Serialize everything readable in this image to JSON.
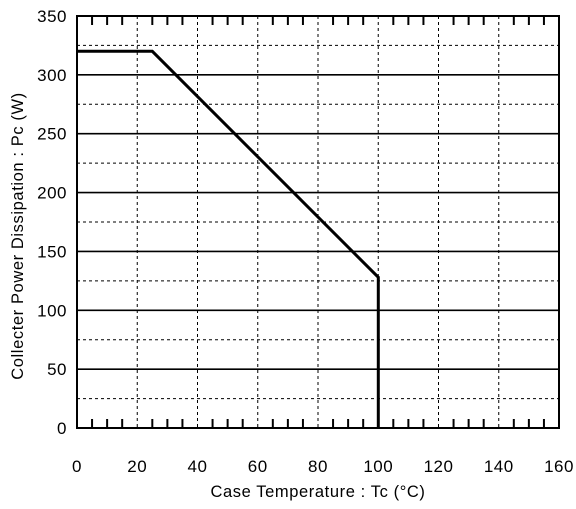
{
  "chart_data": {
    "type": "line",
    "xlabel": "Case Temperature : Tc (°C)",
    "ylabel": "Collecter Power Dissipation : Pc (W)",
    "xlim": [
      0,
      160
    ],
    "ylim": [
      0,
      350
    ],
    "xticks": [
      "0",
      "20",
      "40",
      "60",
      "80",
      "100",
      "120",
      "140",
      "160"
    ],
    "yticks": [
      "0",
      "50",
      "100",
      "150",
      "200",
      "250",
      "300",
      "350"
    ],
    "grid": true,
    "series": [
      {
        "x": [
          0,
          25,
          100,
          100
        ],
        "y": [
          320,
          320,
          128,
          0
        ]
      }
    ]
  },
  "colors": {
    "line": "#000000",
    "grid": "#000000",
    "background": "#ffffff"
  }
}
